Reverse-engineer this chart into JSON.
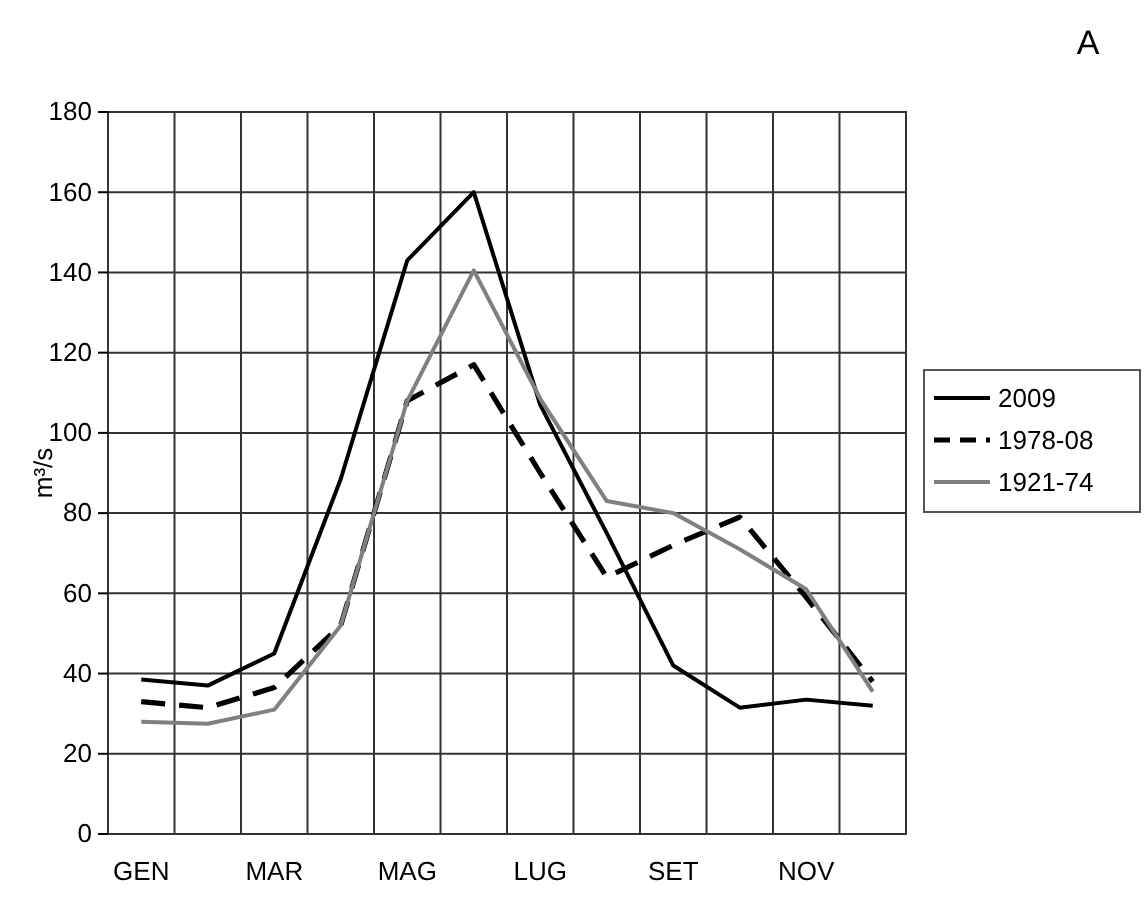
{
  "chart_data": {
    "type": "line",
    "ylabel": "m³/s",
    "annotations": [
      "A"
    ],
    "categories": [
      "GEN",
      null,
      "MAR",
      null,
      "MAG",
      null,
      "LUG",
      null,
      "SET",
      null,
      "NOV",
      null
    ],
    "ylim": [
      0,
      180
    ],
    "yticks": [
      0,
      20,
      40,
      60,
      80,
      100,
      120,
      140,
      160,
      180
    ],
    "grid": true,
    "legend": "right",
    "marker": "none",
    "series": [
      {
        "name": "2009",
        "color": "#000000",
        "line_style": "solid",
        "values": [
          38.5,
          37,
          45,
          88.5,
          143,
          160,
          107,
          75,
          42,
          31.5,
          33.5,
          32
        ]
      },
      {
        "name": "1978-08",
        "color": "#000000",
        "line_style": "dashed",
        "values": [
          33,
          31.5,
          36.5,
          52,
          108,
          117,
          90,
          64,
          72,
          79,
          59,
          38
        ]
      },
      {
        "name": "1921-74",
        "color": "#808080",
        "line_style": "solid",
        "values": [
          28,
          27.5,
          31,
          52,
          108,
          140.5,
          108.5,
          83,
          80,
          71,
          61,
          35.5
        ]
      }
    ]
  }
}
